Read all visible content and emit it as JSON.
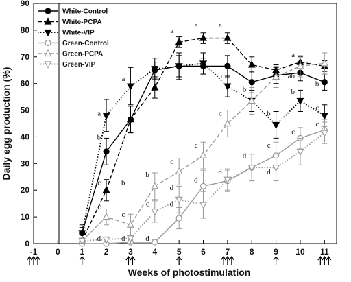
{
  "chart_data": {
    "type": "line",
    "title": "",
    "xlabel": "Weeks of photostimulation",
    "ylabel": "Daily egg production (%)",
    "xlim": [
      -1,
      11.5
    ],
    "ylim": [
      0,
      90
    ],
    "x_ticks": [
      -1,
      0,
      1,
      2,
      3,
      4,
      5,
      6,
      7,
      8,
      9,
      10,
      11
    ],
    "y_ticks": [
      0,
      10,
      20,
      30,
      40,
      50,
      60,
      70,
      80,
      90
    ],
    "grid": false,
    "legend_position": "top-left",
    "x": [
      1,
      2,
      3,
      4,
      5,
      6,
      7,
      8,
      9,
      10,
      11
    ],
    "series": [
      {
        "name": "White-Control",
        "values": [
          4,
          34.5,
          46.5,
          65,
          66.5,
          66.5,
          66.5,
          60.5,
          63,
          64,
          60.5
        ],
        "errors": [
          2,
          5,
          5,
          3,
          4,
          3,
          4,
          4,
          3,
          3,
          3
        ],
        "color": "#000000",
        "line": "solid",
        "marker": "circle-filled"
      },
      {
        "name": "White-PCPA",
        "values": [
          1,
          20,
          46.5,
          58.5,
          75.5,
          77,
          77,
          67,
          65,
          68,
          66.5
        ],
        "errors": [
          1,
          4,
          5,
          4,
          2,
          2,
          2,
          3,
          2,
          2,
          2
        ],
        "color": "#000000",
        "line": "dashed",
        "marker": "triangle-up-filled"
      },
      {
        "name": "White-VIP",
        "values": [
          4,
          48,
          59,
          65.5,
          66.5,
          67.5,
          59,
          53.5,
          44.5,
          53.5,
          48
        ],
        "errors": [
          3,
          6,
          7,
          4,
          5,
          4,
          4,
          4,
          5,
          4,
          4
        ],
        "color": "#000000",
        "line": "dotted",
        "marker": "triangle-down-filled"
      },
      {
        "name": "Green-Control",
        "values": [
          0,
          0,
          0.5,
          0.5,
          9.5,
          21.5,
          23.5,
          28.5,
          33,
          39.5,
          42.5
        ],
        "errors": [
          0,
          0,
          1,
          1,
          4,
          6,
          4,
          5,
          5,
          4,
          4
        ],
        "color": "#9a9a9a",
        "line": "solid",
        "marker": "circle-open"
      },
      {
        "name": "Green-PCPA",
        "values": [
          1,
          10,
          7,
          21.5,
          27,
          33,
          45,
          53.5,
          62.5,
          66.5,
          67.5
        ],
        "errors": [
          1,
          3,
          4,
          5,
          5,
          5,
          5,
          5,
          4,
          4,
          4
        ],
        "color": "#9a9a9a",
        "line": "dashed",
        "marker": "triangle-up-open"
      },
      {
        "name": "Green-VIP",
        "values": [
          1,
          1.5,
          2,
          12,
          16.5,
          14.5,
          24,
          28.5,
          28.5,
          34.5,
          41.5
        ],
        "errors": [
          1,
          1,
          2,
          4,
          5,
          5,
          4,
          5,
          5,
          5,
          4
        ],
        "color": "#9a9a9a",
        "line": "dotted",
        "marker": "triangle-down-open"
      }
    ],
    "annotations": [
      {
        "text": "b",
        "x": 2,
        "y": 39
      },
      {
        "text": "a",
        "x": 2,
        "y": 48
      },
      {
        "text": "c",
        "x": 2,
        "y": 22
      },
      {
        "text": "c",
        "x": 2,
        "y": 13
      },
      {
        "text": "d",
        "x": 2,
        "y": 1
      },
      {
        "text": "a",
        "x": 3,
        "y": 61
      },
      {
        "text": "b",
        "x": 3,
        "y": 22
      },
      {
        "text": "c",
        "x": 3,
        "y": 10
      },
      {
        "text": "d",
        "x": 3,
        "y": 1
      },
      {
        "text": "b",
        "x": 4,
        "y": 25
      },
      {
        "text": "c",
        "x": 4,
        "y": 14
      },
      {
        "text": "d",
        "x": 4,
        "y": 1
      },
      {
        "text": "a",
        "x": 5,
        "y": 79
      },
      {
        "text": "c",
        "x": 5,
        "y": 30
      },
      {
        "text": "d",
        "x": 5,
        "y": 20
      },
      {
        "text": "d",
        "x": 5,
        "y": 14
      },
      {
        "text": "a",
        "x": 6,
        "y": 81
      },
      {
        "text": "c",
        "x": 6,
        "y": 36
      },
      {
        "text": "d",
        "x": 6,
        "y": 23
      },
      {
        "text": "a",
        "x": 7,
        "y": 81
      },
      {
        "text": "b",
        "x": 7,
        "y": 62
      },
      {
        "text": "c",
        "x": 7,
        "y": 48
      },
      {
        "text": "d",
        "x": 7,
        "y": 26
      },
      {
        "text": "b",
        "x": 8,
        "y": 57
      },
      {
        "text": "d",
        "x": 8,
        "y": 32
      },
      {
        "text": "b",
        "x": 9,
        "y": 48
      },
      {
        "text": "c",
        "x": 9,
        "y": 36
      },
      {
        "text": "d",
        "x": 9,
        "y": 26
      },
      {
        "text": "a",
        "x": 10,
        "y": 70
      },
      {
        "text": "ab",
        "x": 10,
        "y": 62
      },
      {
        "text": "b",
        "x": 10,
        "y": 56
      },
      {
        "text": "c",
        "x": 10,
        "y": 41
      },
      {
        "text": "b",
        "x": 11,
        "y": 59
      },
      {
        "text": "c",
        "x": 11,
        "y": 50
      },
      {
        "text": "c",
        "x": 11,
        "y": 44
      }
    ],
    "photostimulation_arrows": [
      {
        "week": -1,
        "count": 3
      },
      {
        "week": 1,
        "count": 1
      },
      {
        "week": 3,
        "count": 2
      },
      {
        "week": 5,
        "count": 1
      },
      {
        "week": 7,
        "count": 3
      },
      {
        "week": 9,
        "count": 1
      },
      {
        "week": 11,
        "count": 3
      }
    ]
  }
}
